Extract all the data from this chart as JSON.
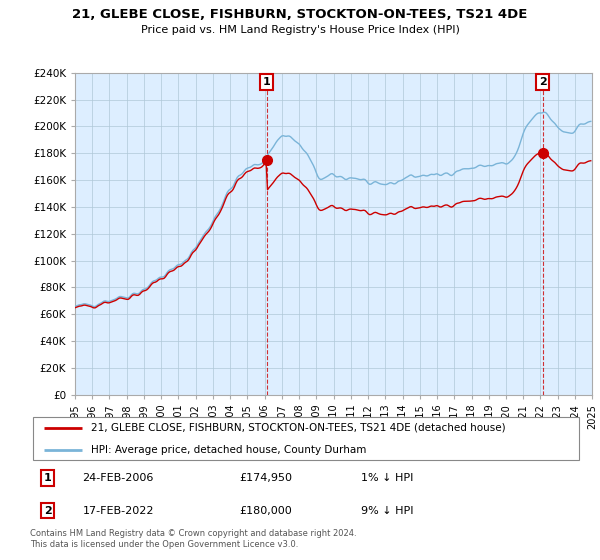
{
  "title": "21, GLEBE CLOSE, FISHBURN, STOCKTON-ON-TEES, TS21 4DE",
  "subtitle": "Price paid vs. HM Land Registry's House Price Index (HPI)",
  "ylim": [
    0,
    240000
  ],
  "legend_line1": "21, GLEBE CLOSE, FISHBURN, STOCKTON-ON-TEES, TS21 4DE (detached house)",
  "legend_line2": "HPI: Average price, detached house, County Durham",
  "annotation1_date": "24-FEB-2006",
  "annotation1_price": "£174,950",
  "annotation1_note": "1% ↓ HPI",
  "annotation2_date": "17-FEB-2022",
  "annotation2_price": "£180,000",
  "annotation2_note": "9% ↓ HPI",
  "footer": "Contains HM Land Registry data © Crown copyright and database right 2024.\nThis data is licensed under the Open Government Licence v3.0.",
  "hpi_color": "#7ab4d8",
  "price_color": "#cc0000",
  "annotation_box_color": "#cc0000",
  "plot_bg_color": "#ddeeff",
  "background_color": "#ffffff",
  "grid_color": "#b0c8d8",
  "sale1_year": 2006.125,
  "sale1_price": 174950,
  "sale2_year": 2022.125,
  "sale2_price": 180000
}
